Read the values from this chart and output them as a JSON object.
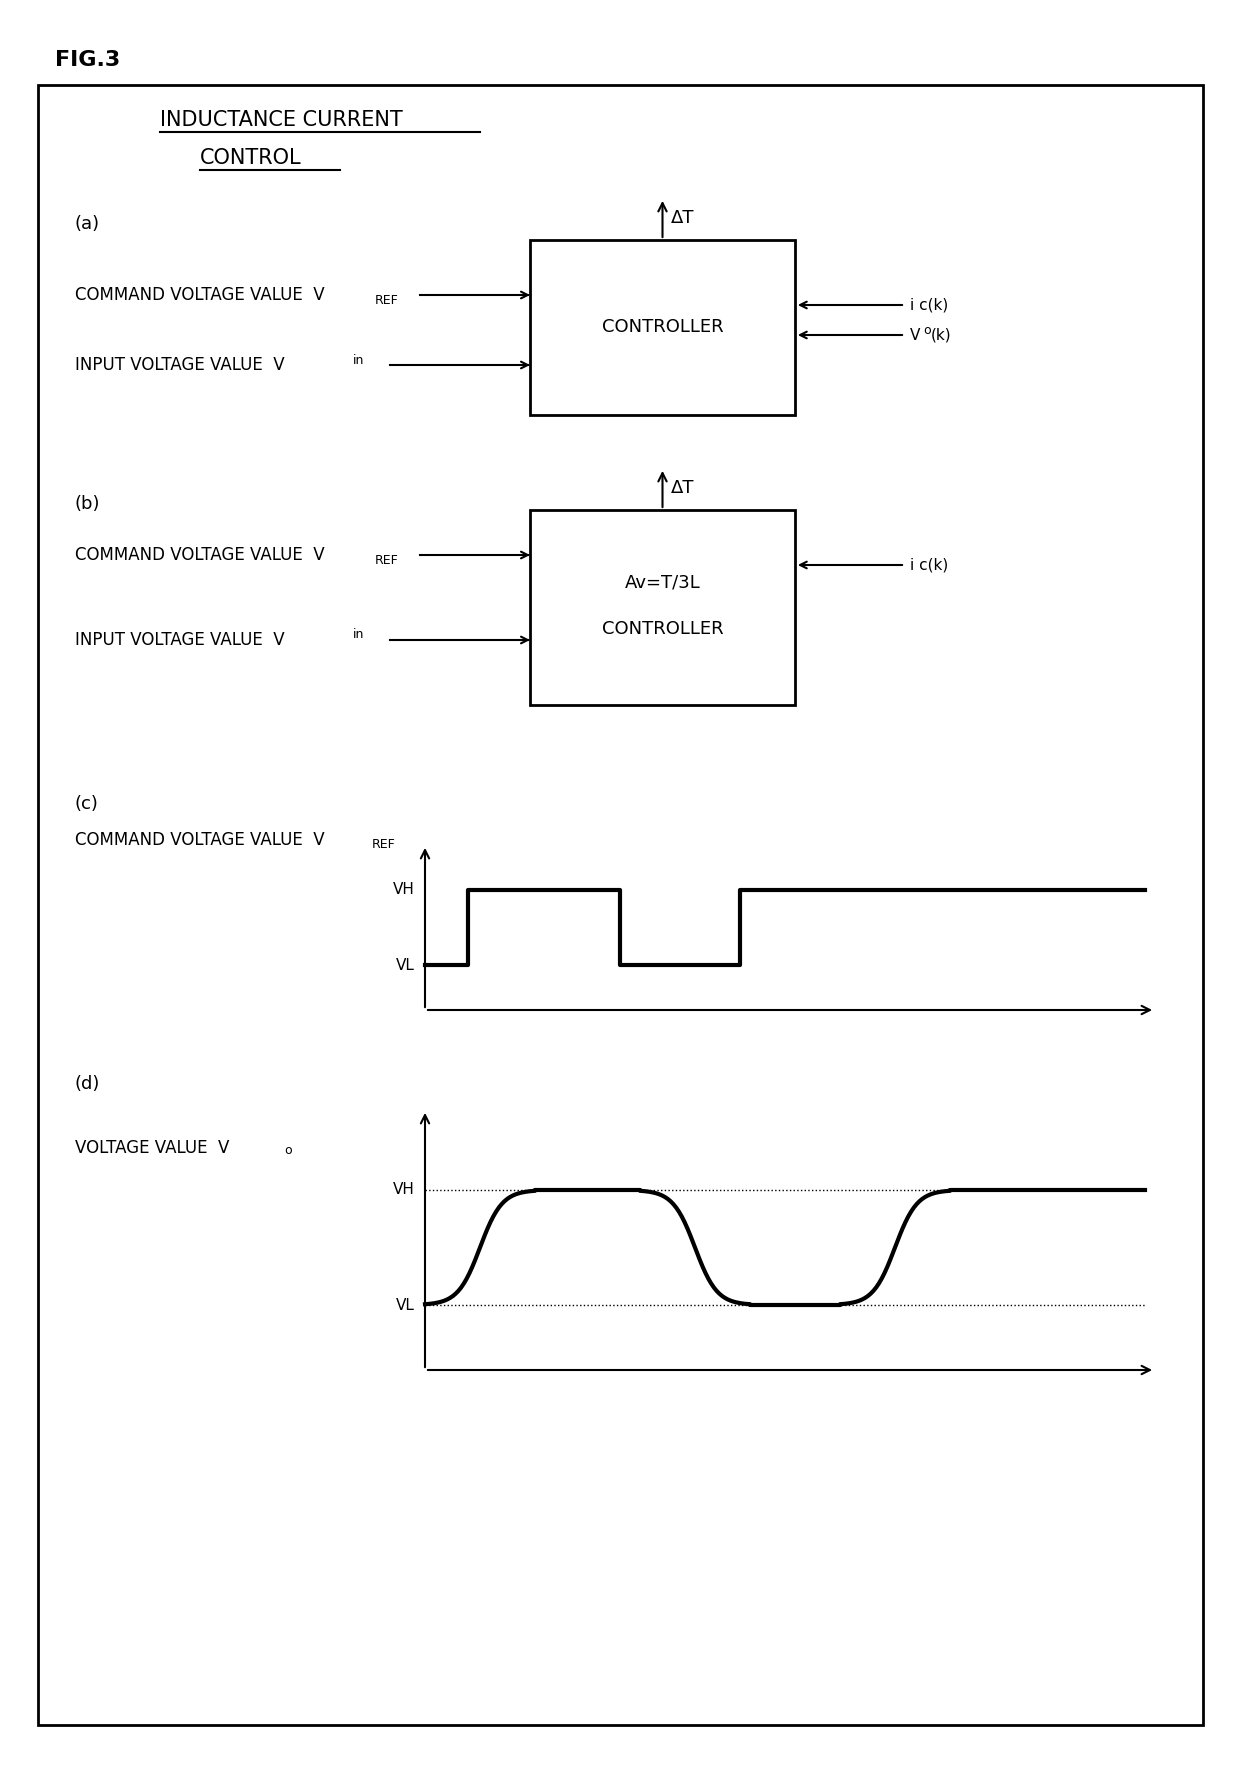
{
  "fig_label": "FIG.3",
  "background_color": "#ffffff",
  "border_color": "#000000",
  "title_line1": "INDUCTANCE CURRENT",
  "title_line2": "CONTROL",
  "panel_a_label": "(a)",
  "panel_b_label": "(b)",
  "panel_c_label": "(c)",
  "panel_d_label": "(d)",
  "delta_t": "ΔT",
  "controller_label": "CONTROLLER",
  "av_label": "Av=T/3L",
  "cmd_label": "COMMAND VOLTAGE VALUE  V",
  "cmd_subscript": "REF",
  "inp_label": "INPUT VOLTAGE VALUE  V",
  "inp_subscript": "in",
  "ic_label": "i c(k)",
  "vo_label": "Vo(k)",
  "c_ylabel": "COMMAND VOLTAGE VALUE  V",
  "c_ysubscript": "REF",
  "d_ylabel": "VOLTAGE VALUE  V",
  "d_ysubscript": "o",
  "vh_label": "VH",
  "vl_label": "VL"
}
